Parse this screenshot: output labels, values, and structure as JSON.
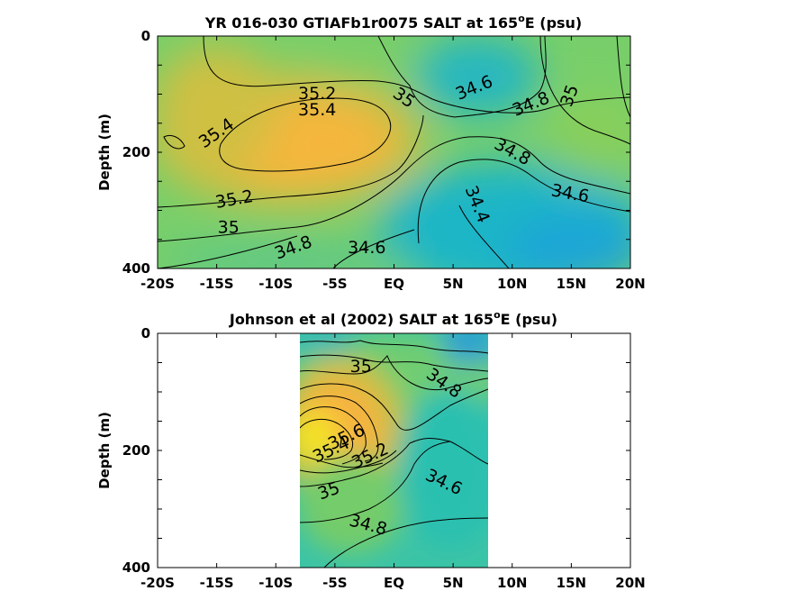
{
  "chart_data": [
    {
      "type": "contour",
      "title_main": "YR 016-030 GTIAFb1r0075 SALT at 165",
      "title_sup": "o",
      "title_tail": "E (psu)",
      "ylabel": "Depth (m)",
      "xlabel": "",
      "xlim": [
        -20,
        20
      ],
      "ylim": [
        0,
        400
      ],
      "y_reversed": true,
      "x_ticks": [
        -20,
        -15,
        -10,
        -5,
        0,
        5,
        10,
        15,
        20
      ],
      "x_tick_labels": [
        "-20S",
        "-15S",
        "-10S",
        "-5S",
        "EQ",
        "5N",
        "10N",
        "15N",
        "20N"
      ],
      "y_ticks": [
        0,
        200,
        400
      ],
      "y_tick_labels": [
        "0",
        "200",
        "400"
      ],
      "data_extent_x": [
        -20,
        20
      ],
      "contour_labels": [
        {
          "text": "35.2",
          "x": -6.5,
          "y": 100,
          "angle": 0
        },
        {
          "text": "35.4",
          "x": -6.5,
          "y": 128,
          "angle": 0
        },
        {
          "text": "35.4",
          "x": -15,
          "y": 168,
          "angle": -35
        },
        {
          "text": "35",
          "x": 0.8,
          "y": 107,
          "angle": 35
        },
        {
          "text": "35.2",
          "x": -13.5,
          "y": 282,
          "angle": -10
        },
        {
          "text": "35",
          "x": -14,
          "y": 330,
          "angle": 0
        },
        {
          "text": "34.8",
          "x": -8.5,
          "y": 365,
          "angle": -20
        },
        {
          "text": "34.6",
          "x": -2.3,
          "y": 365,
          "angle": 0
        },
        {
          "text": "34.6",
          "x": 6.8,
          "y": 90,
          "angle": -22
        },
        {
          "text": "34.8",
          "x": 11.6,
          "y": 118,
          "angle": -22
        },
        {
          "text": "35",
          "x": 14.9,
          "y": 103,
          "angle": -70
        },
        {
          "text": "34.8",
          "x": 10,
          "y": 200,
          "angle": 28
        },
        {
          "text": "34.6",
          "x": 14.9,
          "y": 272,
          "angle": 10
        },
        {
          "text": "34.4",
          "x": 7,
          "y": 290,
          "angle": 68
        }
      ],
      "colormap": "parula",
      "value_range": [
        34.3,
        35.7
      ],
      "salt_field_summary": "max ~35.5 near 5S 170m; min ~34.4 near 5N-20N 250-400m"
    },
    {
      "type": "contour",
      "title_main": "Johnson et al (2002) SALT at 165",
      "title_sup": "o",
      "title_tail": "E (psu)",
      "ylabel": "Depth (m)",
      "xlabel": "",
      "xlim": [
        -20,
        20
      ],
      "ylim": [
        0,
        400
      ],
      "y_reversed": true,
      "x_ticks": [
        -20,
        -15,
        -10,
        -5,
        0,
        5,
        10,
        15,
        20
      ],
      "x_tick_labels": [
        "-20S",
        "-15S",
        "-10S",
        "-5S",
        "EQ",
        "5N",
        "10N",
        "15N",
        "20N"
      ],
      "y_ticks": [
        0,
        200,
        400
      ],
      "y_tick_labels": [
        "0",
        "200",
        "400"
      ],
      "data_extent_x": [
        -8,
        8
      ],
      "contour_labels": [
        {
          "text": "35",
          "x": -2.8,
          "y": 58,
          "angle": 0
        },
        {
          "text": "34.8",
          "x": 4.2,
          "y": 86,
          "angle": 35
        },
        {
          "text": "35.6",
          "x": -4,
          "y": 178,
          "angle": -25
        },
        {
          "text": "35.4",
          "x": -5.3,
          "y": 200,
          "angle": -25
        },
        {
          "text": "35.2",
          "x": -2,
          "y": 210,
          "angle": -25
        },
        {
          "text": "34.6",
          "x": 4.2,
          "y": 255,
          "angle": 25
        },
        {
          "text": "35",
          "x": -5.5,
          "y": 270,
          "angle": -20
        },
        {
          "text": "34.8",
          "x": -2.2,
          "y": 328,
          "angle": 15
        }
      ],
      "colormap": "parula",
      "value_range": [
        34.3,
        35.7
      ],
      "salt_field_summary": "max ~35.7 near 6S-7S 180m; fresher water near surface NE"
    }
  ]
}
